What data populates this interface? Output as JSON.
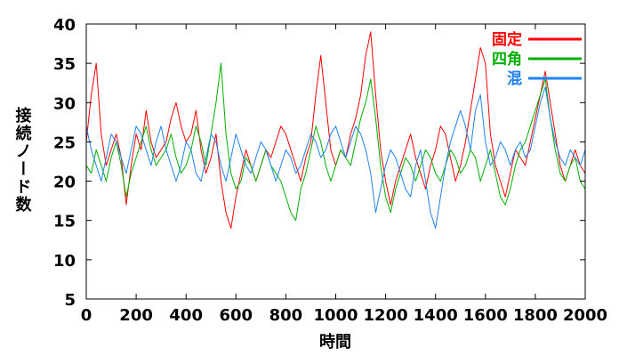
{
  "chart_data": {
    "type": "line",
    "title": "",
    "xlabel": "時間",
    "ylabel": "接続ノード数",
    "xlim": [
      0,
      2000
    ],
    "ylim": [
      5,
      40
    ],
    "xticks": [
      0,
      200,
      400,
      600,
      800,
      1000,
      1200,
      1400,
      1600,
      1800,
      2000
    ],
    "yticks": [
      5,
      10,
      15,
      20,
      25,
      30,
      35,
      40
    ],
    "grid": false,
    "legend_position": "top-right",
    "x": [
      0,
      20,
      40,
      60,
      80,
      100,
      120,
      140,
      160,
      180,
      200,
      220,
      240,
      260,
      280,
      300,
      320,
      340,
      360,
      380,
      400,
      420,
      440,
      460,
      480,
      500,
      520,
      540,
      560,
      580,
      600,
      620,
      640,
      660,
      680,
      700,
      720,
      740,
      760,
      780,
      800,
      820,
      840,
      860,
      880,
      900,
      920,
      940,
      960,
      980,
      1000,
      1020,
      1040,
      1060,
      1080,
      1100,
      1120,
      1140,
      1160,
      1180,
      1200,
      1220,
      1240,
      1260,
      1280,
      1300,
      1320,
      1340,
      1360,
      1380,
      1400,
      1420,
      1440,
      1460,
      1480,
      1500,
      1520,
      1540,
      1560,
      1580,
      1600,
      1620,
      1640,
      1660,
      1680,
      1700,
      1720,
      1740,
      1760,
      1780,
      1800,
      1820,
      1840,
      1860,
      1880,
      1900,
      1920,
      1940,
      1960,
      1980,
      2000
    ],
    "series": [
      {
        "name": "固定",
        "color": "#ff0000",
        "values": [
          25,
          31,
          35,
          26,
          22,
          24,
          26,
          23,
          17,
          22,
          26,
          24,
          29,
          25,
          23,
          24,
          25,
          28,
          30,
          27,
          25,
          26,
          29,
          24,
          21,
          23,
          26,
          20,
          16,
          14,
          18,
          21,
          24,
          22,
          20,
          22,
          24,
          23,
          25,
          27,
          26,
          24,
          22,
          20,
          23,
          25,
          31,
          36,
          30,
          24,
          22,
          24,
          23,
          26,
          28,
          31,
          36,
          39,
          31,
          24,
          20,
          17,
          20,
          22,
          24,
          26,
          23,
          21,
          19,
          22,
          24,
          27,
          26,
          23,
          20,
          22,
          25,
          29,
          33,
          37,
          35,
          26,
          22,
          20,
          18,
          21,
          24,
          23,
          22,
          25,
          28,
          31,
          34,
          30,
          26,
          22,
          20,
          22,
          24,
          22,
          21
        ]
      },
      {
        "name": "四角",
        "color": "#00b000",
        "values": [
          22,
          21,
          24,
          22,
          20,
          23,
          25,
          22,
          18,
          21,
          23,
          25,
          27,
          24,
          22,
          23,
          24,
          26,
          23,
          21,
          22,
          24,
          27,
          25,
          22,
          26,
          30,
          35,
          26,
          21,
          19,
          20,
          23,
          22,
          20,
          22,
          24,
          22,
          21,
          20,
          18,
          16,
          15,
          19,
          21,
          24,
          27,
          25,
          22,
          20,
          22,
          24,
          23,
          22,
          25,
          28,
          30,
          33,
          28,
          22,
          18,
          16,
          19,
          21,
          23,
          22,
          20,
          22,
          24,
          23,
          21,
          20,
          22,
          24,
          23,
          21,
          22,
          24,
          23,
          20,
          22,
          24,
          21,
          18,
          17,
          19,
          22,
          24,
          25,
          27,
          29,
          31,
          33,
          28,
          24,
          21,
          20,
          22,
          23,
          20,
          19
        ]
      },
      {
        "name": "混",
        "color": "#1e82f0",
        "values": [
          27,
          24,
          22,
          20,
          23,
          26,
          25,
          23,
          21,
          24,
          27,
          26,
          24,
          22,
          25,
          27,
          24,
          22,
          20,
          22,
          25,
          24,
          21,
          20,
          23,
          26,
          25,
          22,
          20,
          23,
          26,
          24,
          22,
          21,
          23,
          25,
          24,
          22,
          20,
          22,
          24,
          23,
          21,
          22,
          24,
          26,
          25,
          23,
          24,
          26,
          27,
          25,
          23,
          25,
          27,
          26,
          24,
          21,
          16,
          19,
          22,
          24,
          23,
          21,
          19,
          18,
          22,
          24,
          20,
          16,
          14,
          18,
          22,
          25,
          27,
          29,
          27,
          24,
          29,
          31,
          25,
          22,
          23,
          25,
          24,
          22,
          24,
          25,
          23,
          24,
          27,
          30,
          32,
          28,
          25,
          23,
          22,
          24,
          23,
          22,
          24
        ]
      }
    ]
  }
}
